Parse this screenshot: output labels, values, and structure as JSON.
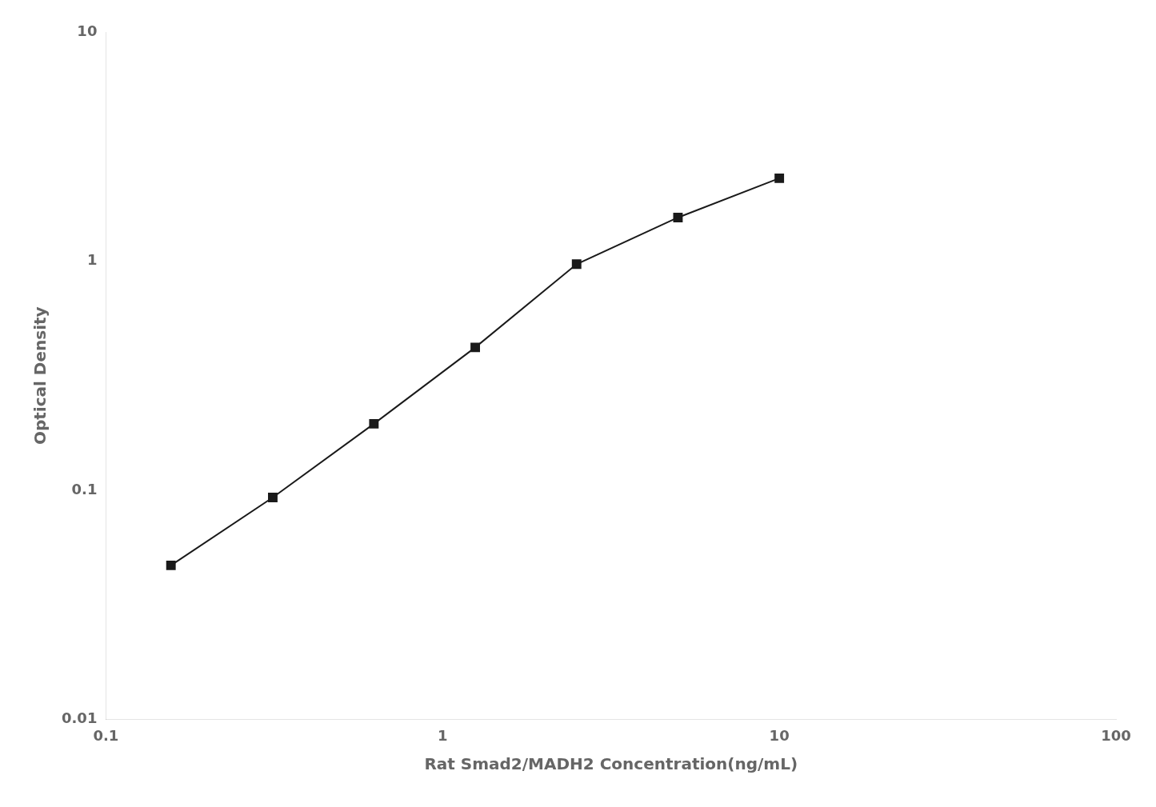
{
  "chart_data": {
    "type": "line",
    "x": [
      0.156,
      0.313,
      0.625,
      1.25,
      2.5,
      5.0,
      10.0
    ],
    "values": [
      0.047,
      0.093,
      0.195,
      0.42,
      0.97,
      1.55,
      2.3
    ],
    "xlabel": "Rat Smad2/MADH2 Concentration(ng/mL)",
    "ylabel": "Optical Density",
    "xlim": [
      0.1,
      100
    ],
    "ylim": [
      0.01,
      10
    ],
    "xticks": [
      0.1,
      1,
      10,
      100
    ],
    "yticks": [
      0.01,
      0.1,
      1,
      10
    ],
    "log": true,
    "grid": false,
    "color": "#1a1a1a",
    "marker": "square"
  }
}
